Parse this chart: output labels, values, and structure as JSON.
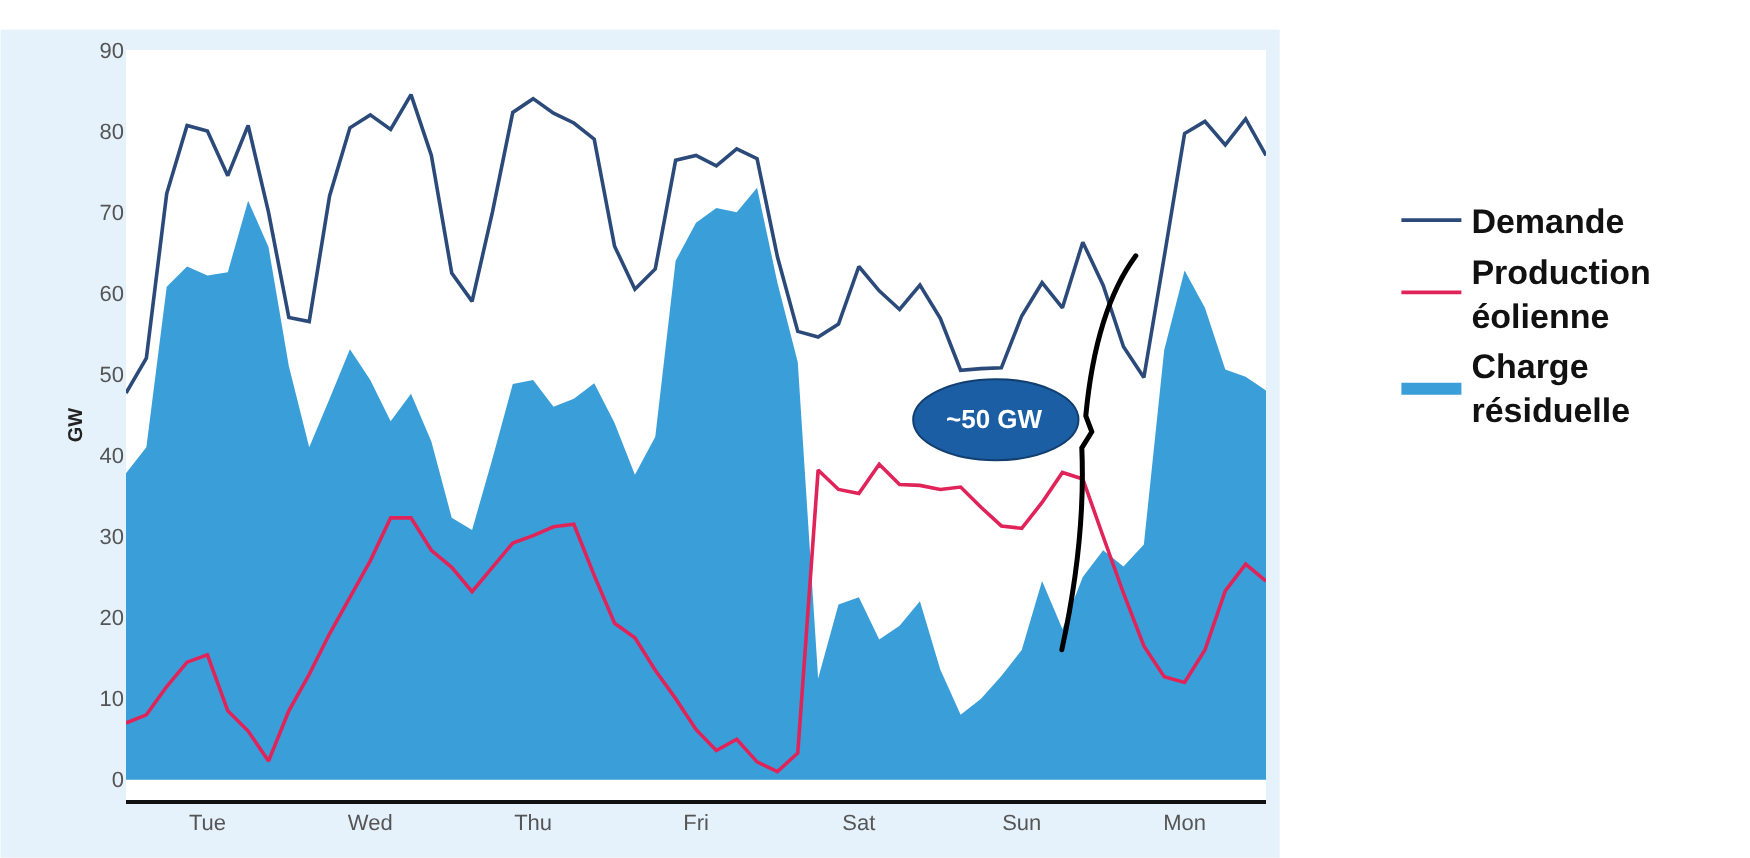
{
  "chart_data": {
    "type": "line",
    "ylabel": "GW",
    "ylim": [
      -2.5,
      90
    ],
    "yticks": [
      0,
      10,
      20,
      30,
      40,
      50,
      60,
      70,
      80,
      90
    ],
    "legend": "right",
    "line_style": "solid",
    "categories": [
      null,
      null,
      null,
      null,
      "Tue",
      null,
      null,
      null,
      null,
      null,
      null,
      null,
      "Wed",
      null,
      null,
      null,
      null,
      null,
      null,
      null,
      "Thu",
      null,
      null,
      null,
      null,
      null,
      null,
      null,
      "Fri",
      null,
      null,
      null,
      null,
      null,
      null,
      null,
      "Sat",
      null,
      null,
      null,
      null,
      null,
      null,
      null,
      "Sun",
      null,
      null,
      null,
      null,
      null,
      null,
      null,
      "Mon",
      null,
      null,
      null,
      null
    ],
    "series": [
      {
        "name": "Demande",
        "color": "#2b4a7a",
        "values": [
          47.7,
          52,
          72.3,
          80.7,
          80,
          74.5,
          80.7,
          70,
          57,
          56.5,
          72,
          80.4,
          82,
          80.2,
          84.5,
          77,
          62.5,
          59,
          70,
          82.3,
          84,
          82.2,
          81,
          79,
          65.8,
          60.5,
          63,
          76.4,
          77,
          75.7,
          77.8,
          76.6,
          64.5,
          55.3,
          54.6,
          56.2,
          63.3,
          60.3,
          58,
          61,
          56.9,
          50.5,
          50.7,
          50.8,
          57.2,
          61.3,
          58.2,
          66.3,
          61,
          53.4,
          49.6,
          64.5,
          79.7,
          81.2,
          78.3,
          81.5,
          77
        ]
      },
      {
        "name": "Production éolienne",
        "color": "#e0245a",
        "values": [
          7,
          8,
          11.5,
          14.5,
          15.4,
          8.5,
          6,
          2.3,
          8.5,
          13,
          18,
          22.5,
          27,
          32.3,
          32.3,
          28.3,
          26.2,
          23.2,
          26.2,
          29.2,
          30.1,
          31.2,
          31.5,
          25.2,
          19.3,
          17.5,
          13.5,
          10,
          6.2,
          3.6,
          5,
          2.2,
          1,
          3.3,
          38.2,
          35.8,
          35.3,
          38.9,
          36.4,
          36.3,
          35.8,
          36.1,
          33.6,
          31.3,
          31,
          34.2,
          37.9,
          37.1,
          30,
          23,
          16.5,
          12.7,
          12,
          16,
          23.3,
          26.6,
          24.5
        ]
      },
      {
        "name": "Charge résiduelle",
        "type": "area",
        "color": "#3a9fd8",
        "values": [
          37.8,
          41,
          60.8,
          63.3,
          62.2,
          62.6,
          71.4,
          65.7,
          51,
          41,
          47,
          53.1,
          49.3,
          44.2,
          47.6,
          41.7,
          32.3,
          30.8,
          39.6,
          48.8,
          49.3,
          46,
          47,
          48.9,
          44,
          37.6,
          42.3,
          64,
          68.7,
          70.5,
          70,
          73,
          61.3,
          51.5,
          12.5,
          21.6,
          22.5,
          17.3,
          19,
          22,
          13.6,
          8,
          10,
          12.8,
          16,
          24.5,
          18.6,
          25,
          28.3,
          26.3,
          29,
          53,
          62.8,
          58.2,
          50.6,
          49.7,
          48
        ]
      }
    ],
    "annotations": [
      "~50 GW"
    ]
  }
}
